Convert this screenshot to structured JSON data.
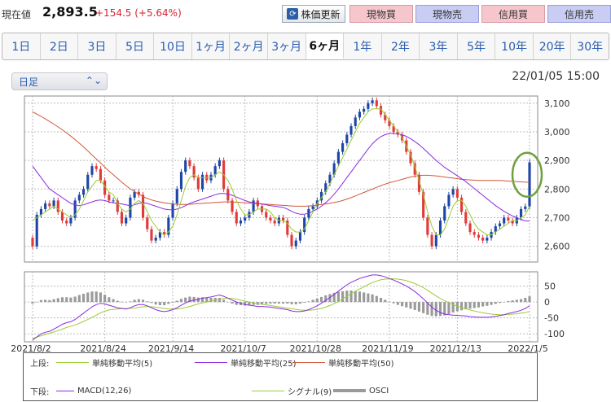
{
  "header": {
    "price_label": "現在値",
    "price_value": "2,893.5",
    "price_change": "+154.5 (+5.64%)",
    "update_button": "株価更新",
    "buttons": [
      "現物買",
      "現物売",
      "信用買",
      "信用売"
    ]
  },
  "tabs": [
    "1日",
    "2日",
    "3日",
    "5日",
    "10日",
    "1ヶ月",
    "2ヶ月",
    "3ヶ月",
    "6ヶ月",
    "1年",
    "2年",
    "3年",
    "5年",
    "10年",
    "20年",
    "30年"
  ],
  "active_tab": "6ヶ月",
  "period_select": "日足",
  "datetime": "22/01/05 15:00",
  "colors": {
    "up": "#1e46a8",
    "down": "#e23a3a",
    "ma5": "#9acd32",
    "ma25": "#8a2be2",
    "ma50": "#d0583a",
    "osci": "#9a9a9a",
    "highlight": "#6fa03a"
  },
  "legend": {
    "upper_label": "上段:",
    "lower_label": "下段:",
    "upper": [
      "単純移動平均(5)",
      "単純移動平均(25)",
      "単純移動平均(50)"
    ],
    "lower": [
      "MACD(12,26)",
      "シグナル(9)",
      "OSCI"
    ]
  },
  "chart_data": [
    {
      "type": "candlestick",
      "x_ticks": [
        "2021/8/2",
        "2021/8/24",
        "2021/9/14",
        "2021/10/7",
        "2021/10/28",
        "2021/11/19",
        "2021/12/13",
        "2022/1/5"
      ],
      "y_ticks": [
        2600,
        2700,
        2800,
        2900,
        3000,
        3100
      ],
      "ylim": [
        2545,
        3125
      ],
      "close": [
        2600,
        2710,
        2730,
        2750,
        2740,
        2760,
        2720,
        2690,
        2680,
        2700,
        2760,
        2780,
        2800,
        2850,
        2880,
        2870,
        2830,
        2780,
        2760,
        2760,
        2720,
        2680,
        2700,
        2770,
        2790,
        2780,
        2700,
        2660,
        2620,
        2630,
        2650,
        2640,
        2700,
        2750,
        2800,
        2860,
        2900,
        2880,
        2840,
        2800,
        2850,
        2830,
        2850,
        2880,
        2900,
        2800,
        2760,
        2720,
        2680,
        2690,
        2700,
        2720,
        2760,
        2740,
        2720,
        2700,
        2690,
        2680,
        2700,
        2690,
        2640,
        2600,
        2620,
        2650,
        2700,
        2730,
        2740,
        2760,
        2790,
        2820,
        2850,
        2890,
        2930,
        2960,
        2990,
        3020,
        3050,
        3070,
        3080,
        3100,
        3110,
        3090,
        3060,
        3040,
        3020,
        3000,
        2990,
        2970,
        2930,
        2890,
        2850,
        2790,
        2700,
        2640,
        2600,
        2640,
        2690,
        2740,
        2780,
        2800,
        2770,
        2720,
        2680,
        2650,
        2640,
        2630,
        2620,
        2630,
        2650,
        2670,
        2680,
        2700,
        2690,
        2680,
        2700,
        2730,
        2739,
        2893
      ],
      "ma5": [
        2690,
        2700,
        2710,
        2720,
        2730,
        2740,
        2730,
        2720,
        2710,
        2700,
        2710,
        2730,
        2760,
        2790,
        2810,
        2830,
        2830,
        2810,
        2790,
        2780,
        2750,
        2730,
        2720,
        2730,
        2750,
        2760,
        2750,
        2720,
        2690,
        2670,
        2650,
        2640,
        2650,
        2670,
        2710,
        2760,
        2810,
        2840,
        2850,
        2840,
        2840,
        2840,
        2840,
        2850,
        2860,
        2850,
        2830,
        2800,
        2760,
        2730,
        2710,
        2710,
        2720,
        2730,
        2730,
        2730,
        2720,
        2700,
        2690,
        2690,
        2680,
        2660,
        2650,
        2650,
        2660,
        2690,
        2720,
        2750,
        2770,
        2790,
        2820,
        2850,
        2880,
        2910,
        2940,
        2970,
        3000,
        3030,
        3050,
        3070,
        3080,
        3080,
        3080,
        3060,
        3040,
        3020,
        3000,
        2980,
        2950,
        2920,
        2880,
        2830,
        2780,
        2720,
        2670,
        2640,
        2640,
        2660,
        2700,
        2740,
        2760,
        2760,
        2740,
        2710,
        2680,
        2660,
        2650,
        2640,
        2640,
        2650,
        2660,
        2670,
        2680,
        2690,
        2690,
        2700,
        2710,
        2740
      ],
      "ma25": [
        2880,
        2860,
        2840,
        2820,
        2800,
        2790,
        2780,
        2770,
        2760,
        2750,
        2745,
        2742,
        2745,
        2750,
        2755,
        2760,
        2762,
        2760,
        2755,
        2752,
        2750,
        2748,
        2745,
        2742,
        2745,
        2750,
        2752,
        2750,
        2745,
        2740,
        2735,
        2730,
        2728,
        2727,
        2730,
        2735,
        2742,
        2750,
        2755,
        2760,
        2765,
        2770,
        2775,
        2780,
        2784,
        2785,
        2782,
        2778,
        2772,
        2766,
        2760,
        2755,
        2752,
        2750,
        2748,
        2745,
        2742,
        2740,
        2738,
        2736,
        2730,
        2722,
        2716,
        2712,
        2712,
        2716,
        2722,
        2730,
        2740,
        2752,
        2766,
        2782,
        2800,
        2820,
        2840,
        2860,
        2880,
        2900,
        2920,
        2940,
        2958,
        2972,
        2983,
        2990,
        2994,
        2995,
        2993,
        2990,
        2984,
        2976,
        2966,
        2955,
        2942,
        2928,
        2914,
        2900,
        2888,
        2876,
        2866,
        2856,
        2846,
        2836,
        2826,
        2814,
        2802,
        2790,
        2778,
        2766,
        2754,
        2742,
        2732,
        2722,
        2714,
        2706,
        2700,
        2694,
        2689,
        2688
      ],
      "ma50": [
        3070,
        3062,
        3054,
        3045,
        3036,
        3027,
        3017,
        3007,
        2996,
        2985,
        2973,
        2960,
        2947,
        2933,
        2919,
        2905,
        2891,
        2877,
        2863,
        2850,
        2837,
        2824,
        2812,
        2801,
        2791,
        2782,
        2774,
        2767,
        2762,
        2758,
        2755,
        2752,
        2750,
        2748,
        2747,
        2746,
        2746,
        2747,
        2748,
        2749,
        2750,
        2751,
        2752,
        2753,
        2754,
        2755,
        2755,
        2755,
        2754,
        2753,
        2752,
        2751,
        2750,
        2749,
        2748,
        2747,
        2746,
        2745,
        2744,
        2743,
        2742,
        2741,
        2740,
        2740,
        2740,
        2741,
        2742,
        2744,
        2746,
        2748,
        2750,
        2753,
        2756,
        2760,
        2765,
        2770,
        2776,
        2782,
        2788,
        2794,
        2800,
        2806,
        2812,
        2817,
        2822,
        2826,
        2830,
        2834,
        2838,
        2842,
        2845,
        2847,
        2848,
        2848,
        2847,
        2846,
        2844,
        2842,
        2840,
        2838,
        2836,
        2834,
        2833,
        2832,
        2831,
        2830,
        2830,
        2830,
        2830,
        2830,
        2830,
        2829,
        2828,
        2827,
        2826,
        2825,
        2824,
        2824
      ]
    },
    {
      "type": "macd",
      "y_ticks": [
        50,
        0,
        -50,
        -100
      ],
      "ylim": [
        -125,
        95
      ],
      "macd": [
        -120,
        -110,
        -100,
        -95,
        -92,
        -85,
        -78,
        -70,
        -65,
        -62,
        -55,
        -45,
        -35,
        -25,
        -15,
        -8,
        -4,
        -6,
        -10,
        -14,
        -18,
        -20,
        -22,
        -18,
        -12,
        -8,
        -8,
        -12,
        -18,
        -24,
        -28,
        -30,
        -28,
        -24,
        -18,
        -10,
        -3,
        3,
        6,
        8,
        12,
        14,
        16,
        19,
        22,
        18,
        12,
        6,
        0,
        -4,
        -8,
        -10,
        -12,
        -14,
        -14,
        -15,
        -16,
        -18,
        -20,
        -22,
        -24,
        -28,
        -30,
        -30,
        -28,
        -24,
        -18,
        -12,
        -4,
        5,
        14,
        24,
        34,
        44,
        54,
        62,
        68,
        74,
        78,
        82,
        85,
        85,
        83,
        79,
        74,
        69,
        63,
        57,
        50,
        42,
        33,
        22,
        10,
        -3,
        -16,
        -26,
        -33,
        -38,
        -40,
        -41,
        -42,
        -43,
        -44,
        -46,
        -47,
        -48,
        -48,
        -48,
        -47,
        -45,
        -43,
        -40,
        -36,
        -33,
        -30,
        -26,
        -20,
        -12
      ],
      "signal": [
        -115,
        -110,
        -106,
        -102,
        -98,
        -94,
        -90,
        -85,
        -80,
        -76,
        -72,
        -67,
        -61,
        -55,
        -48,
        -41,
        -34,
        -29,
        -25,
        -23,
        -22,
        -21,
        -21,
        -20,
        -19,
        -17,
        -15,
        -14,
        -15,
        -16,
        -18,
        -20,
        -22,
        -22,
        -22,
        -20,
        -17,
        -14,
        -10,
        -6,
        -3,
        0,
        3,
        6,
        9,
        11,
        12,
        11,
        9,
        6,
        3,
        0,
        -3,
        -5,
        -7,
        -9,
        -11,
        -13,
        -15,
        -17,
        -19,
        -21,
        -23,
        -25,
        -26,
        -26,
        -25,
        -23,
        -20,
        -16,
        -11,
        -5,
        2,
        10,
        18,
        26,
        34,
        41,
        48,
        55,
        61,
        66,
        70,
        72,
        73,
        73,
        72,
        70,
        67,
        63,
        58,
        52,
        45,
        37,
        28,
        19,
        11,
        4,
        -2,
        -8,
        -13,
        -17,
        -21,
        -25,
        -28,
        -31,
        -34,
        -36,
        -38,
        -39,
        -40,
        -40,
        -39,
        -38,
        -37,
        -35,
        -33,
        -30
      ],
      "x_ticks": [
        "2021/8/2",
        "2021/8/24",
        "2021/9/14",
        "2021/10/7",
        "2021/10/28",
        "2021/11/19",
        "2021/12/13",
        "2022/1/5"
      ]
    }
  ]
}
